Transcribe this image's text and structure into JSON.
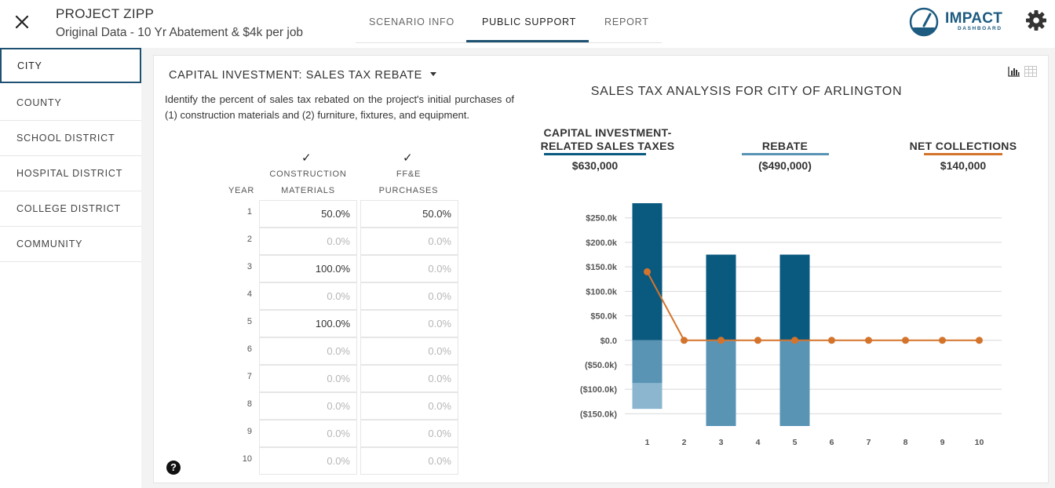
{
  "header": {
    "title": "PROJECT ZIPP",
    "subtitle": "Original Data - 10 Yr Abatement & $4k per job",
    "tabs": [
      "SCENARIO INFO",
      "PUBLIC SUPPORT",
      "REPORT"
    ],
    "active_tab": "PUBLIC SUPPORT",
    "logo_text": "IMPACT",
    "logo_sub": "DASHBOARD"
  },
  "sidebar": {
    "items": [
      "CITY",
      "COUNTY",
      "SCHOOL DISTRICT",
      "HOSPITAL DISTRICT",
      "COLLEGE DISTRICT",
      "COMMUNITY"
    ],
    "active": "CITY"
  },
  "left": {
    "section_title": "CAPITAL INVESTMENT: SALES TAX REBATE",
    "description": "Identify the percent of sales tax rebated on the project's initial purchases of (1) construction materials and (2) furniture, fixtures, and equipment.",
    "check": "✓",
    "year_label": "YEAR",
    "col1_line1": "CONSTRUCTION",
    "col1_line2": "MATERIALS",
    "col2_line1": "FF&E",
    "col2_line2": "PURCHASES",
    "help": "?",
    "rows": [
      {
        "year": "1",
        "materials": "50.0%",
        "ffe": "50.0%"
      },
      {
        "year": "2",
        "materials": "0.0%",
        "ffe": "0.0%"
      },
      {
        "year": "3",
        "materials": "100.0%",
        "ffe": "0.0%"
      },
      {
        "year": "4",
        "materials": "0.0%",
        "ffe": "0.0%"
      },
      {
        "year": "5",
        "materials": "100.0%",
        "ffe": "0.0%"
      },
      {
        "year": "6",
        "materials": "0.0%",
        "ffe": "0.0%"
      },
      {
        "year": "7",
        "materials": "0.0%",
        "ffe": "0.0%"
      },
      {
        "year": "8",
        "materials": "0.0%",
        "ffe": "0.0%"
      },
      {
        "year": "9",
        "materials": "0.0%",
        "ffe": "0.0%"
      },
      {
        "year": "10",
        "materials": "0.0%",
        "ffe": "0.0%"
      }
    ]
  },
  "summary": {
    "title": "SALES TAX ANALYSIS FOR CITY OF ARLINGTON",
    "items": [
      {
        "label_line1": "CAPITAL INVESTMENT-",
        "label_line2": "RELATED SALES TAXES",
        "value": "$630,000",
        "color": "#0a5a80"
      },
      {
        "label_line1": "",
        "label_line2": "REBATE",
        "value": "($490,000)",
        "color": "#5a94b5"
      },
      {
        "label_line1": "",
        "label_line2": "NET COLLECTIONS",
        "value": "$140,000",
        "color": "#d4742c"
      }
    ]
  },
  "chart_data": {
    "type": "bar",
    "categories": [
      "1",
      "2",
      "3",
      "4",
      "5",
      "6",
      "7",
      "8",
      "9",
      "10"
    ],
    "ylim": [
      -175,
      280
    ],
    "yticks": [
      250,
      200,
      150,
      100,
      50,
      0,
      -50,
      -100,
      -150
    ],
    "ytick_labels": [
      "$250.0k",
      "$200.0k",
      "$150.0k",
      "$100.0k",
      "$50.0k",
      "$0.0",
      "($50.0k)",
      "($100.0k)",
      "($150.0k)"
    ],
    "series": [
      {
        "key": "taxes",
        "type": "bar",
        "color": "#0a5a80",
        "values": [
          280,
          0,
          175,
          0,
          175,
          0,
          0,
          0,
          0,
          0
        ]
      },
      {
        "key": "rebate_materials",
        "type": "bar",
        "color": "#5a94b5",
        "values": [
          -87.5,
          0,
          -175,
          0,
          -175,
          0,
          0,
          0,
          0,
          0
        ]
      },
      {
        "key": "rebate_ffe",
        "type": "bar",
        "color": "#8cb6d0",
        "values": [
          -52.5,
          0,
          0,
          0,
          0,
          0,
          0,
          0,
          0,
          0
        ]
      },
      {
        "key": "net",
        "type": "line",
        "color": "#d4742c",
        "values": [
          140,
          0,
          0,
          0,
          0,
          0,
          0,
          0,
          0,
          0
        ]
      }
    ],
    "grid": true
  }
}
